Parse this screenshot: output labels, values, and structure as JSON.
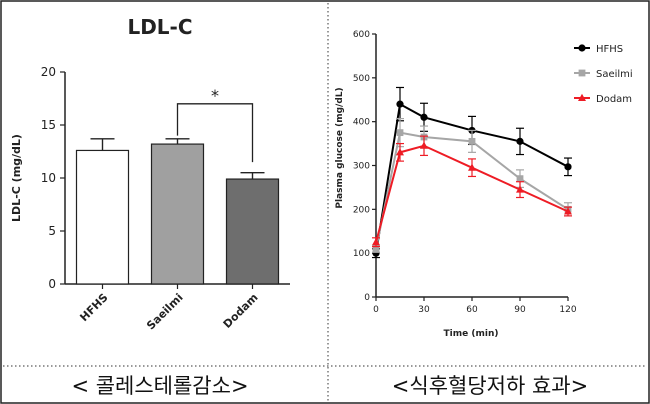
{
  "chart_data": [
    {
      "type": "bar",
      "title": "LDL-C",
      "ylabel": "LDL-C (mg/dL)",
      "xlabel": "",
      "categories": [
        "HFHS",
        "Saeilmi",
        "Dodam"
      ],
      "values": [
        12.6,
        13.2,
        9.9
      ],
      "errors": [
        1.1,
        0.5,
        0.6
      ],
      "ylim": [
        0,
        20
      ],
      "yticks": [
        0,
        5,
        10,
        15,
        20
      ],
      "bar_colors": [
        "#ffffff",
        "#a0a0a0",
        "#6e6e6e"
      ],
      "significance": [
        {
          "from": "Saeilmi",
          "to": "Dodam",
          "label": "*"
        }
      ],
      "grid": false,
      "caption": "< 콜레스테롤감소>"
    },
    {
      "type": "line",
      "title": "",
      "ylabel": "Plasma glucose (mg/dL)",
      "xlabel": "Time (min)",
      "x": [
        0,
        15,
        30,
        60,
        90,
        120
      ],
      "xticks": [
        0,
        30,
        60,
        90,
        120
      ],
      "xlim": [
        0,
        120
      ],
      "ylim": [
        0,
        600
      ],
      "yticks": [
        0,
        100,
        200,
        300,
        400,
        500,
        600
      ],
      "legend_position": "top-right",
      "grid": false,
      "series": [
        {
          "name": "HFHS",
          "values": [
            100,
            440,
            410,
            380,
            355,
            297
          ],
          "errors": [
            10,
            38,
            32,
            32,
            30,
            20
          ],
          "color": "#000000",
          "marker": "circle"
        },
        {
          "name": "Saeilmi",
          "values": [
            110,
            375,
            365,
            355,
            270,
            200
          ],
          "errors": [
            8,
            32,
            25,
            25,
            20,
            15
          ],
          "color": "#a6a6a6",
          "marker": "square"
        },
        {
          "name": "Dodam",
          "values": [
            125,
            330,
            345,
            295,
            245,
            195
          ],
          "errors": [
            10,
            20,
            22,
            20,
            18,
            10
          ],
          "color": "#ee1c25",
          "marker": "triangle"
        }
      ],
      "caption": "<식후혈당저하 효과>"
    }
  ]
}
